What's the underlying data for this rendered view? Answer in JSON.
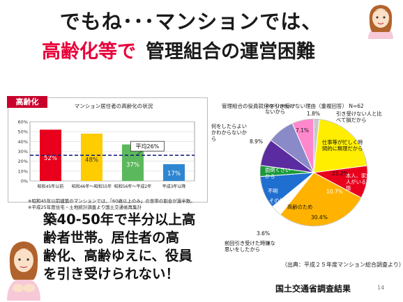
{
  "slide": {
    "title_line1": "でもね･･･マンションでは、",
    "title_highlight": "高齢化等で",
    "title_rest": "管理組合の運営困難",
    "badge": "高齢化",
    "notes": [
      "※昭和45年以前建築のマンションでは、「60歳以上のみ」の世帯の割合が過半数。",
      "※平成25年度住宅・土地統計調査より国土交通省再集計"
    ],
    "body_lines": [
      "築40-50年で半分以上高",
      "齢者世帯。居住者の高",
      "齢化、高齢ゆえに、役員",
      "を引き受けられない！"
    ],
    "source": "（出典：平成２５年度マンション総合調査より）",
    "footer": "国土交通省調査結果",
    "page_number": "14"
  },
  "chart_data": [
    {
      "type": "bar",
      "title": "マンション居住者の高齢化の状況",
      "categories": [
        "昭和45年以前",
        "昭和46年～昭和55年",
        "昭和56年～平成2年",
        "平成3年以降"
      ],
      "values": [
        52,
        48,
        37,
        17
      ],
      "value_labels": [
        "52%",
        "48%",
        "37%",
        "17%"
      ],
      "colors": [
        "#e8001c",
        "#ffcc00",
        "#5cb85c",
        "#2f86d0"
      ],
      "ylim": [
        0,
        60
      ],
      "yticks": [
        "0%",
        "10%",
        "20%",
        "30%",
        "40%",
        "50%",
        "60%"
      ],
      "average": {
        "value": 26,
        "label": "平均26%"
      },
      "grid": true
    },
    {
      "type": "pie",
      "title": "管理組合の役員就任を引き受けない理由（重複回答）",
      "n_label": "N=62",
      "slices": [
        {
          "label": "引き受けない人と比べて損だから",
          "value": 1.8,
          "value_label": "1.8%",
          "color": "#c8c8c8"
        },
        {
          "label": "仕事等が忙しく時間的に無理だから",
          "value": 23.2,
          "value_label": "23.2%",
          "color": "#ffee00"
        },
        {
          "label": "本人、家族に病人がいる等の事情",
          "value": 10.7,
          "value_label": "10.7%",
          "color": "#e8001c"
        },
        {
          "label": "高齢のため",
          "value": 30.4,
          "value_label": "30.4%",
          "color": "#ffb300"
        },
        {
          "label": "前回引き受けた時嫌な思いをしたから",
          "value": 3.6,
          "value_label": "3.6%",
          "color": "#ffffff"
        },
        {
          "label": "その他",
          "value": 10.7,
          "value_label": "10.7%",
          "color": "#1f6fd1"
        },
        {
          "label": "不明",
          "value": 3.6,
          "value_label": "3.6%",
          "color": "#1a9a3a"
        },
        {
          "label": "面倒くさいから",
          "value": 8.9,
          "value_label": "8.9%",
          "color": "#5a2ca0"
        },
        {
          "label": "何をしたらよいかわからないから",
          "value": 8.9,
          "value_label": "8.9%",
          "color": "#8a8ac8"
        },
        {
          "label": "あまり関心がないから",
          "value": 7.1,
          "value_label": "7.1%",
          "color": "#ff88cc"
        }
      ]
    }
  ]
}
